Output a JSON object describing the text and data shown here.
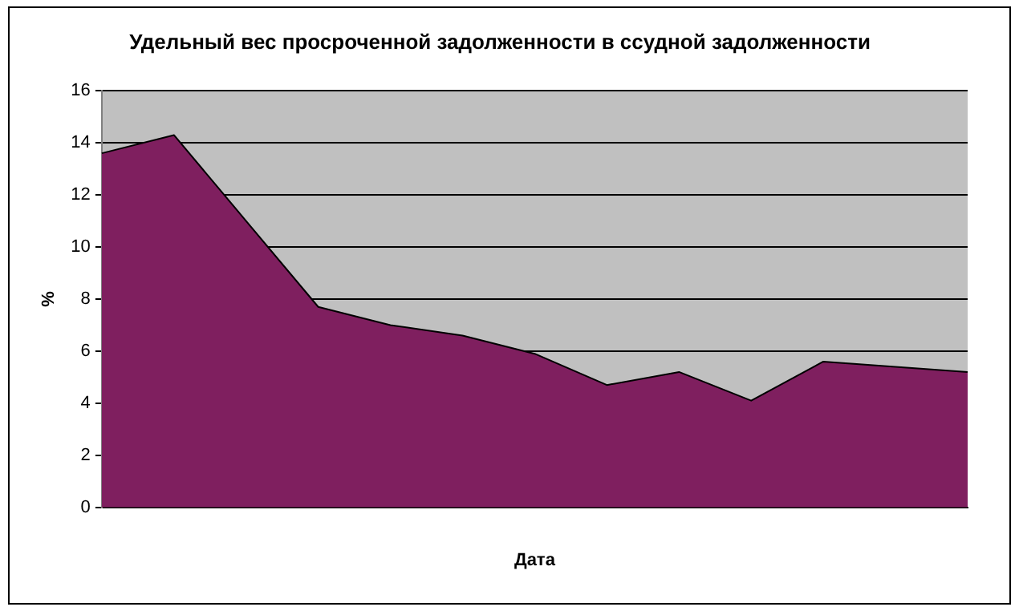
{
  "chart_data": {
    "type": "area",
    "title": "Удельный вес просроченной задолженности в ссудной задолженности",
    "xlabel": "Дата",
    "ylabel": "%",
    "categories": [
      null,
      null,
      null,
      null,
      null,
      null,
      null,
      null,
      null,
      null,
      null,
      null,
      null
    ],
    "values": [
      13.6,
      14.3,
      11.0,
      7.7,
      7.0,
      6.6,
      5.9,
      4.7,
      5.2,
      4.1,
      5.6,
      5.4,
      5.2
    ],
    "color": "#7f1f5f",
    "ylim": [
      0,
      16
    ],
    "yticks": [
      0,
      2,
      4,
      6,
      8,
      10,
      12,
      14,
      16
    ],
    "grid": "y",
    "legend": false
  }
}
